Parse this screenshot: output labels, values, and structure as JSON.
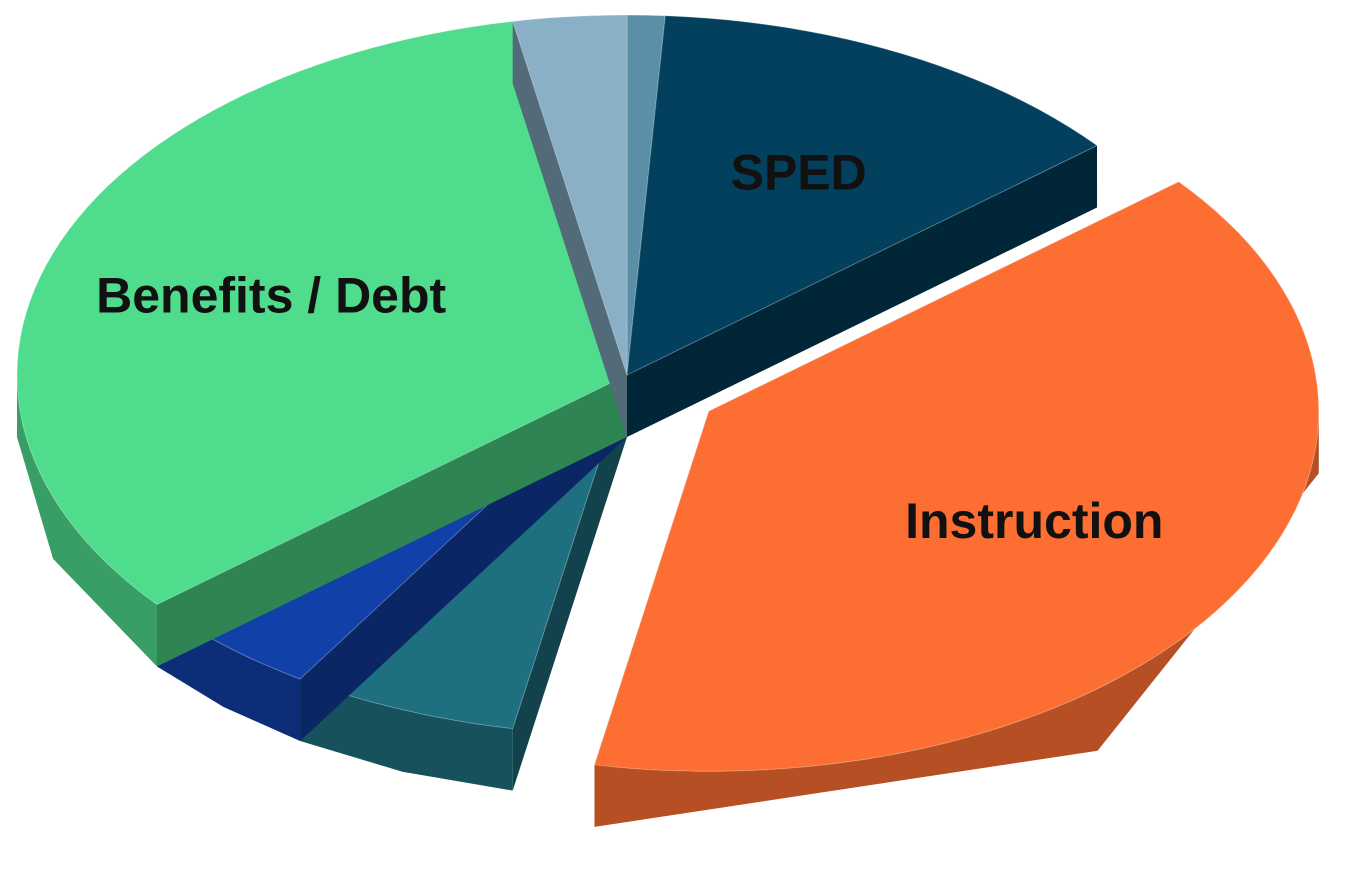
{
  "chart_data": {
    "type": "pie3d",
    "categories": [
      null,
      "SPED",
      "Instruction",
      null,
      null,
      "Benefits / Debt",
      null
    ],
    "values": [
      1,
      13,
      39,
      6,
      5,
      33,
      3
    ],
    "colors": [
      "#5b8fa8",
      "#02405e",
      "#fd6e32",
      "#1e7080",
      "#1040a8",
      "#4fdc8c",
      "#8ab0c8"
    ],
    "exploded": [
      false,
      false,
      true,
      false,
      false,
      false,
      false
    ]
  }
}
